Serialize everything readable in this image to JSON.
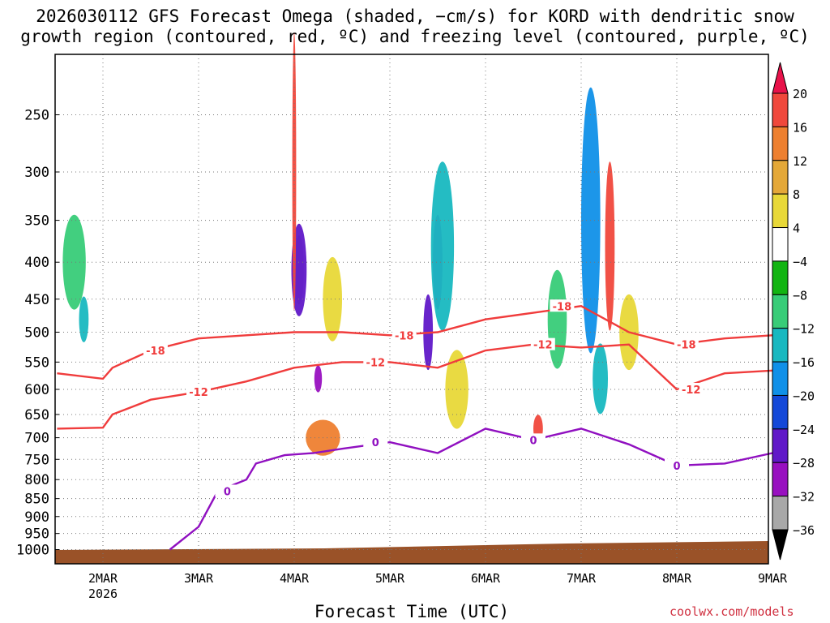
{
  "chart_data": {
    "type": "heatmap",
    "title_line1": "2026030112 GFS Forecast Omega (shaded, −cm/s) for KORD with dendritic snow",
    "title_line2": "growth region (contoured, red, ºC) and freezing level (contoured, purple, ºC)",
    "xlabel": "Forecast Time (UTC)",
    "ylabel": "",
    "credit": "coolwx.com/models",
    "x_range_days": [
      -0.48,
      7.0
    ],
    "x_ticks": [
      {
        "day": 0,
        "label": "2MAR",
        "sub": "2026"
      },
      {
        "day": 1,
        "label": "3MAR"
      },
      {
        "day": 2,
        "label": "4MAR"
      },
      {
        "day": 3,
        "label": "5MAR"
      },
      {
        "day": 4,
        "label": "6MAR"
      },
      {
        "day": 5,
        "label": "7MAR"
      },
      {
        "day": 6,
        "label": "8MAR"
      },
      {
        "day": 7,
        "label": "9MAR"
      }
    ],
    "y_pressure_levels": [
      250,
      300,
      350,
      400,
      450,
      500,
      550,
      600,
      650,
      700,
      750,
      800,
      850,
      900,
      950,
      1000
    ],
    "colorbar": {
      "labels": [
        "20",
        "16",
        "12",
        "8",
        "4",
        "−4",
        "−8",
        "−12",
        "−16",
        "−20",
        "−24",
        "−28",
        "−32",
        "−36"
      ],
      "colors": [
        "#e8124a",
        "#f0483c",
        "#ee8030",
        "#e4a838",
        "#e8d838",
        "#ffffff",
        "#12b412",
        "#38cc78",
        "#18b8c0",
        "#1090e8",
        "#1448d8",
        "#6018c8",
        "#9810c0",
        "#a8a8a8",
        "#000000"
      ]
    },
    "omega_features": [
      {
        "d": -0.3,
        "p": 400,
        "v": -8,
        "wd": 0.12,
        "hp": 120
      },
      {
        "d": -0.2,
        "p": 480,
        "v": -12,
        "wd": 0.05,
        "hp": 70
      },
      {
        "d": 2.05,
        "p": 410,
        "v": -32,
        "wd": 0.05,
        "hp": 90
      },
      {
        "d": 2.05,
        "p": 410,
        "v": -24,
        "wd": 0.08,
        "hp": 120
      },
      {
        "d": 2.0,
        "p": 300,
        "v": 20,
        "wd": 0.02,
        "hp": 250
      },
      {
        "d": 2.3,
        "p": 700,
        "v": 16,
        "wd": 0.18,
        "hp": 80
      },
      {
        "d": 2.4,
        "p": 450,
        "v": 8,
        "wd": 0.1,
        "hp": 120
      },
      {
        "d": 2.25,
        "p": 580,
        "v": -28,
        "wd": 0.04,
        "hp": 50
      },
      {
        "d": 3.4,
        "p": 500,
        "v": -24,
        "wd": 0.05,
        "hp": 120
      },
      {
        "d": 3.5,
        "p": 400,
        "v": -28,
        "wd": 0.05,
        "hp": 120
      },
      {
        "d": 3.55,
        "p": 380,
        "v": -12,
        "wd": 0.12,
        "hp": 200
      },
      {
        "d": 3.7,
        "p": 600,
        "v": 8,
        "wd": 0.12,
        "hp": 150
      },
      {
        "d": 3.1,
        "p": 650,
        "v": 4,
        "wd": 0.2,
        "hp": 160
      },
      {
        "d": 4.55,
        "p": 680,
        "v": 20,
        "wd": 0.05,
        "hp": 60
      },
      {
        "d": 4.75,
        "p": 480,
        "v": -8,
        "wd": 0.1,
        "hp": 150
      },
      {
        "d": 5.1,
        "p": 350,
        "v": -16,
        "wd": 0.1,
        "hp": 280
      },
      {
        "d": 5.3,
        "p": 380,
        "v": 20,
        "wd": 0.05,
        "hp": 200
      },
      {
        "d": 5.2,
        "p": 580,
        "v": -12,
        "wd": 0.08,
        "hp": 130
      },
      {
        "d": 5.5,
        "p": 500,
        "v": 8,
        "wd": 0.1,
        "hp": 120
      },
      {
        "d": 6.0,
        "p": 450,
        "v": 4,
        "wd": 0.25,
        "hp": 200
      },
      {
        "d": 6.4,
        "p": 700,
        "v": 4,
        "wd": 0.1,
        "hp": 100
      }
    ],
    "dgz_minus12": {
      "label": "-12",
      "days": [
        -0.48,
        0,
        0.1,
        0.5,
        1.0,
        1.5,
        2.0,
        2.5,
        3.0,
        3.5,
        4.0,
        4.5,
        5.0,
        5.5,
        6.0,
        6.5,
        7.0
      ],
      "p": [
        680,
        678,
        650,
        620,
        605,
        585,
        560,
        550,
        550,
        560,
        530,
        520,
        525,
        520,
        600,
        570,
        565
      ]
    },
    "dgz_minus18": {
      "label": "-18",
      "days": [
        -0.48,
        0,
        0.1,
        0.5,
        1.0,
        1.5,
        2.0,
        2.5,
        3.0,
        3.5,
        4.0,
        4.5,
        5.0,
        5.5,
        6.0,
        6.5,
        7.0
      ],
      "p": [
        570,
        580,
        560,
        530,
        510,
        505,
        500,
        500,
        505,
        500,
        480,
        470,
        460,
        500,
        520,
        510,
        505
      ]
    },
    "freezing_level": {
      "label": "0",
      "days": [
        0.7,
        1.0,
        1.2,
        1.5,
        1.6,
        1.9,
        2.2,
        2.5,
        3.0,
        3.5,
        4.0,
        4.5,
        5.0,
        5.5,
        6.0,
        6.5,
        7.0
      ],
      "p": [
        1000,
        930,
        830,
        800,
        760,
        740,
        735,
        725,
        710,
        735,
        680,
        705,
        680,
        715,
        765,
        760,
        735
      ]
    }
  }
}
